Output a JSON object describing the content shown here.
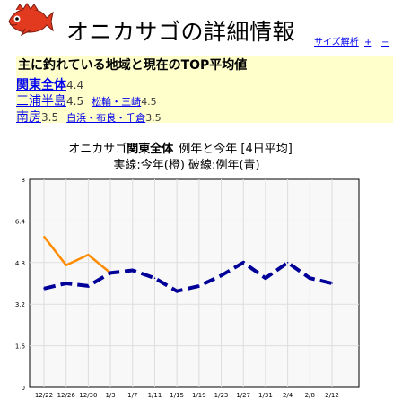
{
  "header": {
    "title": "オニカサゴの詳細情報",
    "size_link": "サイズ解析",
    "zoom_in": "+",
    "zoom_out": "−"
  },
  "regions": {
    "heading": "主に釣れている地域と現在のTOP平均値",
    "rows": [
      {
        "name": "関東全体",
        "value": "4.4",
        "bold": true,
        "sub": []
      },
      {
        "name": "三浦半島",
        "value": "4.5",
        "bold": false,
        "sub": [
          {
            "name": "松輪・三崎",
            "value": "4.5"
          }
        ]
      },
      {
        "name": "南房",
        "value": "3.5",
        "bold": false,
        "sub": [
          {
            "name": "白浜・布良・千倉",
            "value": "3.5"
          }
        ]
      }
    ]
  },
  "chart_title": {
    "line1_prefix": "オニカサゴ",
    "line1_region": "関東全体",
    "line1_suffix": "例年と今年 [4日平均]",
    "line2": "実線:今年(橙) 破線:例年(青)"
  },
  "colors": {
    "this_year": "#ff8c00",
    "avg_year": "#000099",
    "plot_bg": "#f8f8f8",
    "grid": "#dddddd",
    "box_bg": "#ffffcc",
    "link": "#0000ee"
  },
  "chart_data": {
    "type": "line",
    "x_labels": [
      "12/22",
      "12/26",
      "12/30",
      "1/3",
      "1/7",
      "1/11",
      "1/15",
      "1/19",
      "1/23",
      "1/27",
      "1/31",
      "2/4",
      "2/8",
      "2/12"
    ],
    "ylim": [
      0,
      8
    ],
    "y_ticks": [
      "0",
      "1.6",
      "3.2",
      "4.8",
      "6.4",
      "8"
    ],
    "grid": true,
    "series": [
      {
        "style": "solid",
        "color": "#ff8c00",
        "points": [
          {
            "x": "12/22",
            "y": 5.8
          },
          {
            "x": "12/26",
            "y": 4.7
          },
          {
            "x": "12/30",
            "y": 5.1
          },
          {
            "x": "1/3",
            "y": 4.4
          }
        ]
      },
      {
        "style": "dashed",
        "color": "#000099",
        "points": [
          {
            "x": "12/22",
            "y": 3.8
          },
          {
            "x": "12/26",
            "y": 4.0
          },
          {
            "x": "12/30",
            "y": 3.9
          },
          {
            "x": "1/3",
            "y": 4.4
          },
          {
            "x": "1/7",
            "y": 4.5
          },
          {
            "x": "1/11",
            "y": 4.2
          },
          {
            "x": "1/15",
            "y": 3.7
          },
          {
            "x": "1/19",
            "y": 3.9
          },
          {
            "x": "1/23",
            "y": 4.3
          },
          {
            "x": "1/27",
            "y": 4.8
          },
          {
            "x": "1/31",
            "y": 4.2
          },
          {
            "x": "2/4",
            "y": 4.8
          },
          {
            "x": "2/8",
            "y": 4.2
          },
          {
            "x": "2/12",
            "y": 4.0
          }
        ]
      }
    ]
  }
}
